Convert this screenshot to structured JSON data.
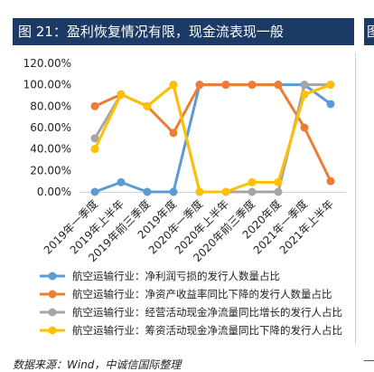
{
  "header": {
    "title": "图 21：盈利恢复情况有限，现金流表现一般",
    "side_title": "图"
  },
  "source_note": "数据来源：Wind，中诚信国际整理",
  "chart_data": {
    "type": "line",
    "categories": [
      "2019年一季度",
      "2019年上半年",
      "2019年前三季度",
      "2019年度",
      "2020年一季度",
      "2020年上半年",
      "2020年前三季度",
      "2020年度",
      "2021年一季度",
      "2021年上半年"
    ],
    "ylim": [
      0,
      120
    ],
    "yticks": [
      "0.00%",
      "20.00%",
      "40.00%",
      "60.00%",
      "80.00%",
      "100.00%",
      "120.00%"
    ],
    "legend_position": "bottom",
    "grid": false,
    "series": [
      {
        "name": "航空运输行业：净利润亏损的发行人数量占比",
        "color": "#5b9bd5",
        "values": [
          0,
          9,
          0,
          0,
          100,
          100,
          100,
          100,
          100,
          82
        ]
      },
      {
        "name": "航空运输行业：净资产收益率同比下降的发行人数量占比",
        "color": "#ed7d31",
        "values": [
          80,
          91,
          80,
          55,
          100,
          100,
          100,
          100,
          60,
          10
        ]
      },
      {
        "name": "航空运输行业：经营活动现金净流量同比增长的发行人占比",
        "color": "#a5a5a5",
        "values": [
          50,
          91,
          80,
          100,
          0,
          0,
          0,
          0,
          100,
          100
        ]
      },
      {
        "name": "航空运输行业：筹资活动现金净流量同比下降的发行人占比",
        "color": "#ffc000",
        "values": [
          40,
          91,
          80,
          100,
          0,
          0,
          9,
          9,
          91,
          100
        ]
      }
    ]
  }
}
